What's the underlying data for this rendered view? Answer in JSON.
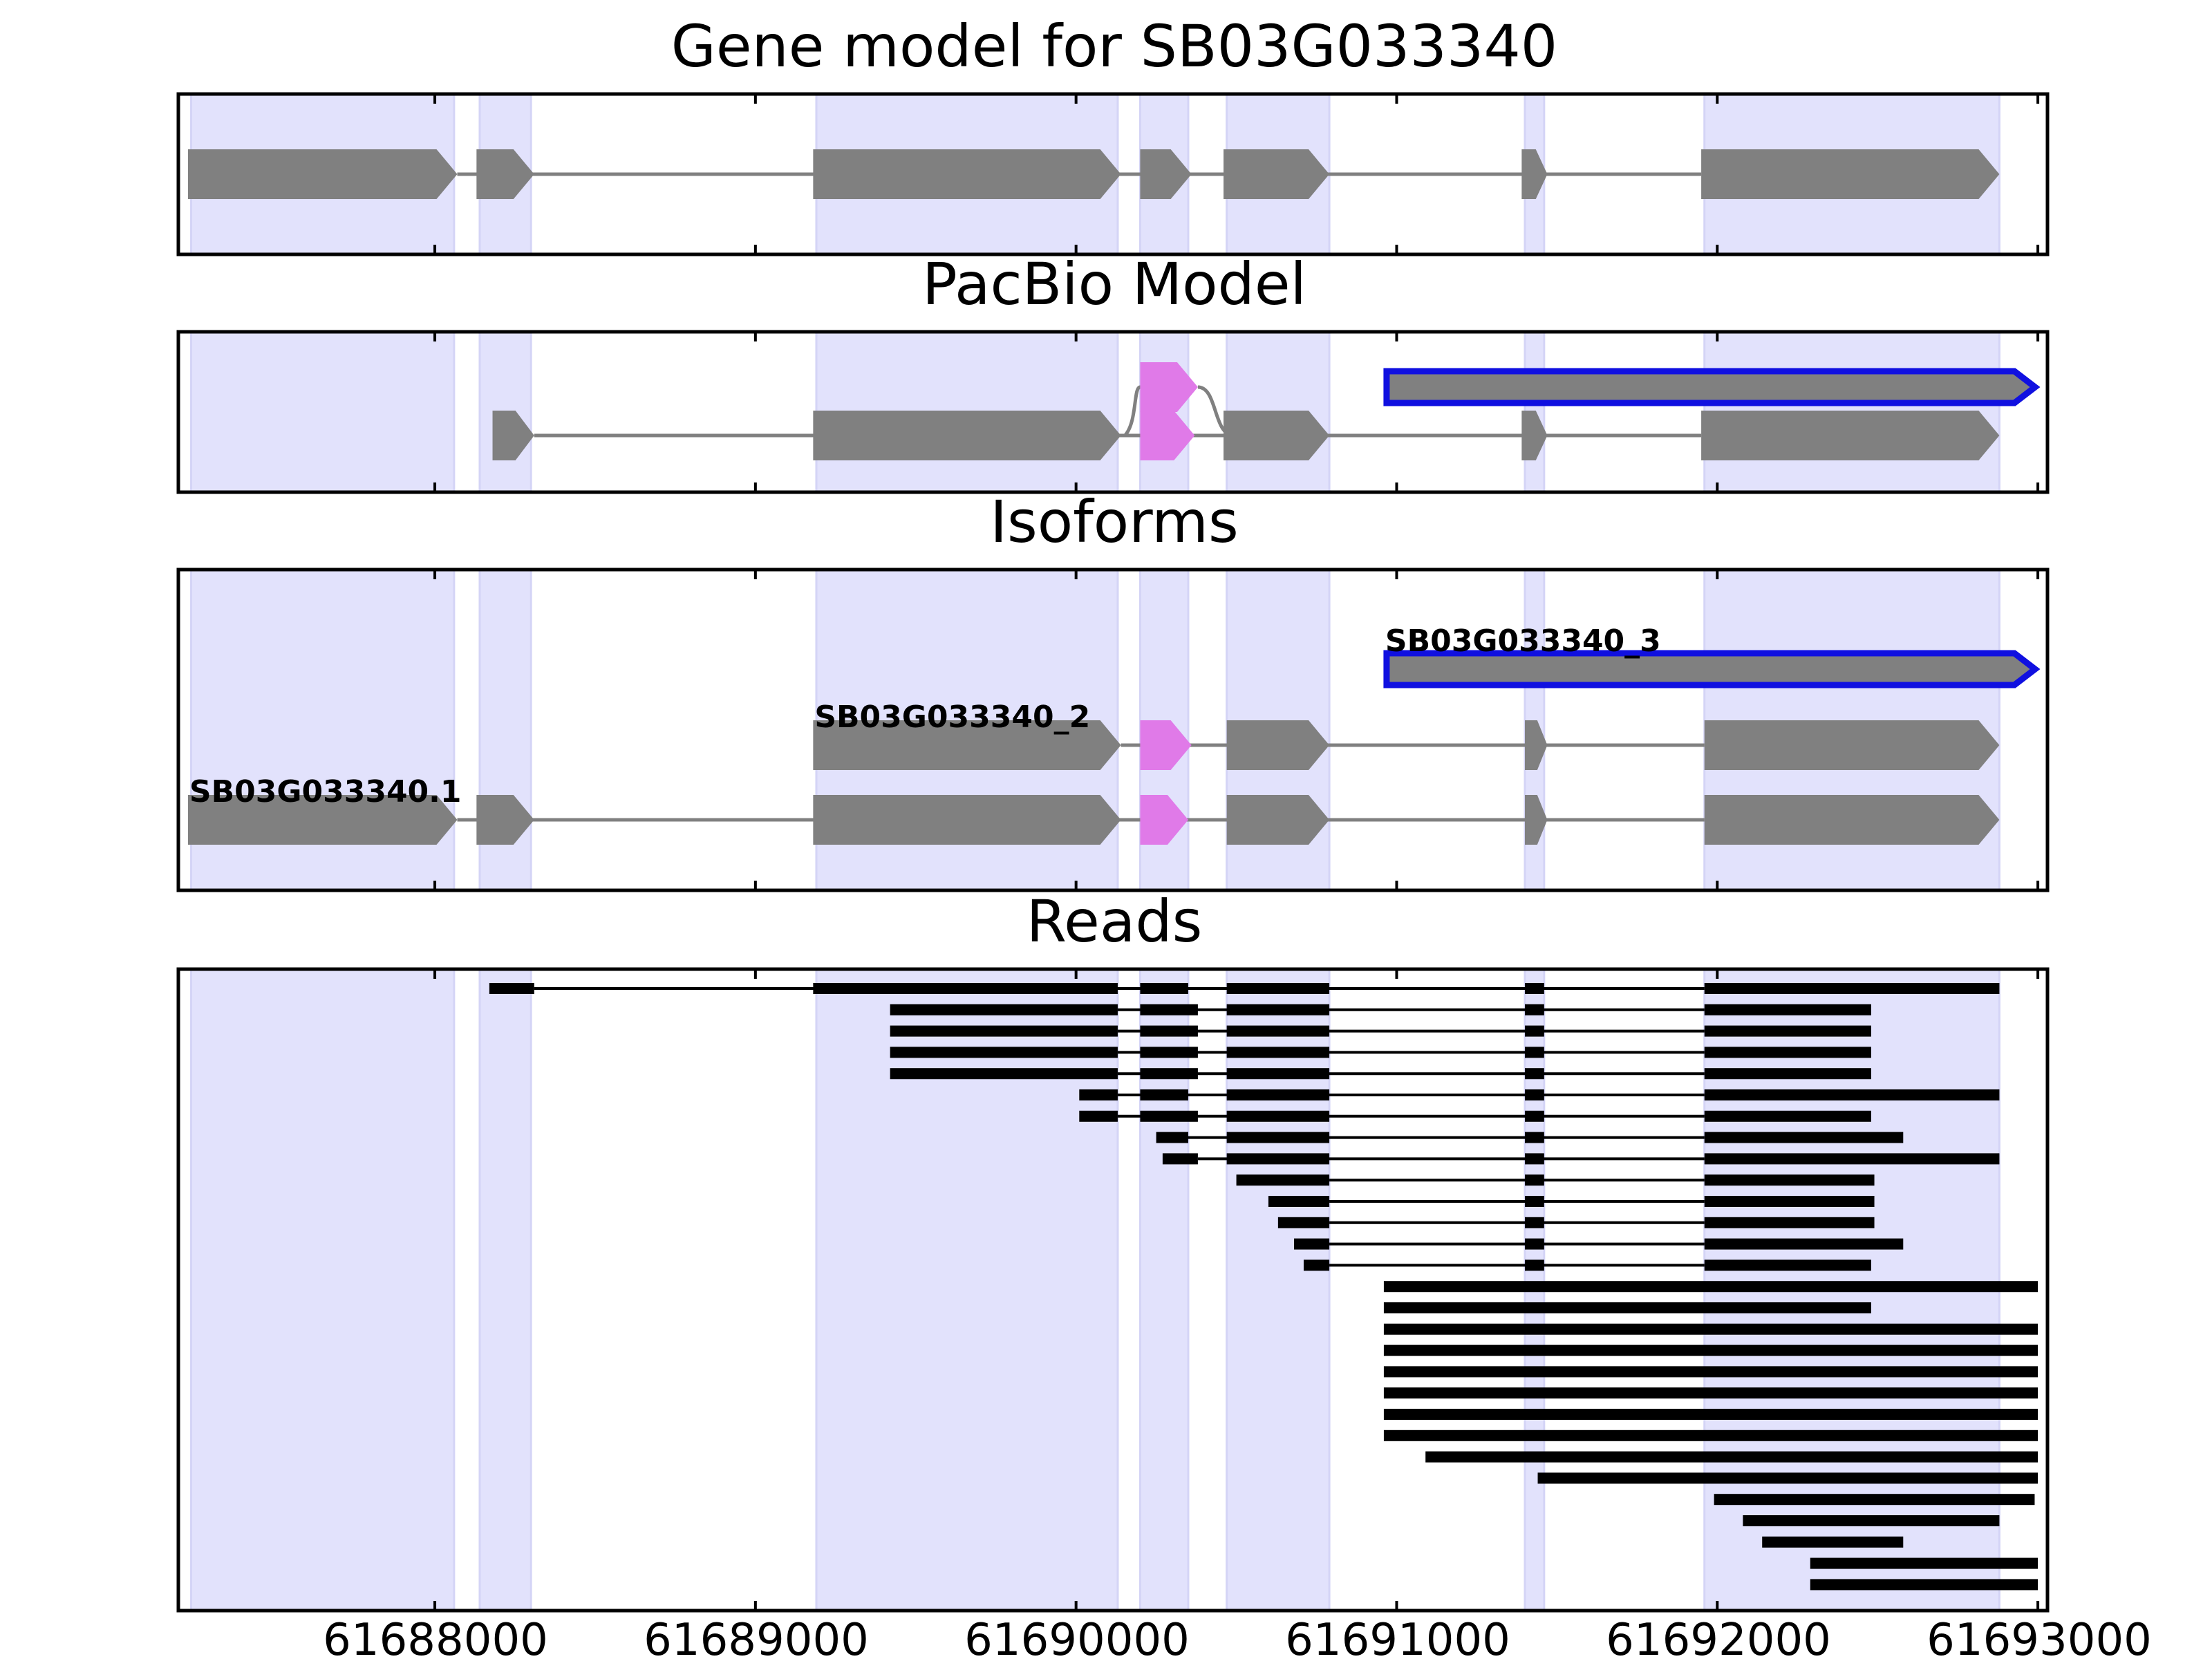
{
  "chart_data": {
    "type": "gene-structure-track",
    "xlim": [
      61687200,
      61693030
    ],
    "xticks": [
      61688000,
      61689000,
      61690000,
      61691000,
      61692000,
      61693000
    ],
    "tick_labels": [
      "61688000",
      "61689000",
      "61690000",
      "61691000",
      "61692000",
      "61693000"
    ],
    "colors": {
      "exon": "#808080",
      "intron": "#808080",
      "alt_exon": "#e07ae8",
      "unspliced_outline": "#1010e0",
      "shade": "#e2e2fc",
      "read": "#000000"
    },
    "shaded_regions": [
      [
        61687240,
        61688060
      ],
      [
        61688140,
        61688300
      ],
      [
        61689190,
        61690130
      ],
      [
        61690200,
        61690350
      ],
      [
        61690470,
        61690790
      ],
      [
        61691400,
        61691460
      ],
      [
        61691960,
        61692880
      ]
    ],
    "panels": [
      {
        "title": "Gene model for SB03G033340",
        "rows": 1,
        "features": [
          {
            "row": 0,
            "exons": [
              [
                61687230,
                61688070
              ],
              [
                61688130,
                61688310
              ],
              [
                61689180,
                61690140
              ],
              [
                61690200,
                61690360
              ],
              [
                61690460,
                61690790
              ],
              [
                61691390,
                61691470
              ],
              [
                61691950,
                61692880
              ]
            ]
          }
        ]
      },
      {
        "title": "PacBio Model",
        "rows": 2,
        "features": [
          {
            "row": 0,
            "exons": [
              [
                61688180,
                61688310
              ],
              [
                61689180,
                61690140
              ],
              [
                61690200,
                61690370
              ],
              [
                61690460,
                61690790
              ],
              [
                61691390,
                61691470
              ],
              [
                61691950,
                61692880
              ]
            ],
            "alt": [
              2
            ]
          },
          {
            "row": 1,
            "exons": [
              [
                61690200,
                61690380
              ]
            ],
            "alt": [
              0
            ],
            "branch": true
          },
          {
            "row": 1,
            "exons": [
              [
                61690960,
                61693000
              ]
            ],
            "unspliced": true
          }
        ]
      },
      {
        "title": "Isoforms",
        "rows": 3,
        "features": [
          {
            "row": 0,
            "label": "SB03G033340.1",
            "exons": [
              [
                61687230,
                61688070
              ],
              [
                61688130,
                61688310
              ],
              [
                61689180,
                61690140
              ],
              [
                61690200,
                61690350
              ],
              [
                61690470,
                61690790
              ],
              [
                61691400,
                61691470
              ],
              [
                61691960,
                61692880
              ]
            ],
            "alt": [
              3
            ]
          },
          {
            "row": 1,
            "label": "SB03G033340_2",
            "exons": [
              [
                61689180,
                61690140
              ],
              [
                61690200,
                61690360
              ],
              [
                61690470,
                61690790
              ],
              [
                61691400,
                61691470
              ],
              [
                61691960,
                61692880
              ]
            ],
            "alt": [
              1
            ]
          },
          {
            "row": 2,
            "label": "SB03G033340_3",
            "exons": [
              [
                61690960,
                61693000
              ]
            ],
            "unspliced": true
          }
        ]
      },
      {
        "title": "Reads",
        "reads": [
          [
            [
              61688170,
              61688310
            ],
            [
              61689180,
              61690130
            ],
            [
              61690200,
              61690350
            ],
            [
              61690470,
              61690790
            ],
            [
              61691400,
              61691460
            ],
            [
              61691960,
              61692880
            ]
          ],
          [
            [
              61689420,
              61690130
            ],
            [
              61690200,
              61690380
            ],
            [
              61690470,
              61690790
            ],
            [
              61691400,
              61691460
            ],
            [
              61691960,
              61692480
            ]
          ],
          [
            [
              61689420,
              61690130
            ],
            [
              61690200,
              61690380
            ],
            [
              61690470,
              61690790
            ],
            [
              61691400,
              61691460
            ],
            [
              61691960,
              61692480
            ]
          ],
          [
            [
              61689420,
              61690130
            ],
            [
              61690200,
              61690380
            ],
            [
              61690470,
              61690790
            ],
            [
              61691400,
              61691460
            ],
            [
              61691960,
              61692480
            ]
          ],
          [
            [
              61689420,
              61690130
            ],
            [
              61690200,
              61690380
            ],
            [
              61690470,
              61690790
            ],
            [
              61691400,
              61691460
            ],
            [
              61691960,
              61692480
            ]
          ],
          [
            [
              61690010,
              61690130
            ],
            [
              61690200,
              61690350
            ],
            [
              61690470,
              61690790
            ],
            [
              61691400,
              61691460
            ],
            [
              61691960,
              61692880
            ]
          ],
          [
            [
              61690010,
              61690130
            ],
            [
              61690200,
              61690380
            ],
            [
              61690470,
              61690790
            ],
            [
              61691400,
              61691460
            ],
            [
              61691960,
              61692480
            ]
          ],
          [
            [
              61690250,
              61690350
            ],
            [
              61690470,
              61690790
            ],
            [
              61691400,
              61691460
            ],
            [
              61691960,
              61692580
            ]
          ],
          [
            [
              61690270,
              61690380
            ],
            [
              61690470,
              61690790
            ],
            [
              61691400,
              61691460
            ],
            [
              61691960,
              61692880
            ]
          ],
          [
            [
              61690500,
              61690790
            ],
            [
              61691400,
              61691460
            ],
            [
              61691960,
              61692490
            ]
          ],
          [
            [
              61690600,
              61690790
            ],
            [
              61691400,
              61691460
            ],
            [
              61691960,
              61692490
            ]
          ],
          [
            [
              61690630,
              61690790
            ],
            [
              61691400,
              61691460
            ],
            [
              61691960,
              61692490
            ]
          ],
          [
            [
              61690680,
              61690790
            ],
            [
              61691400,
              61691460
            ],
            [
              61691960,
              61692580
            ]
          ],
          [
            [
              61690710,
              61690790
            ],
            [
              61691400,
              61691460
            ],
            [
              61691960,
              61692480
            ]
          ],
          [
            [
              61690960,
              61693000
            ]
          ],
          [
            [
              61690960,
              61692480
            ]
          ],
          [
            [
              61690960,
              61693000
            ]
          ],
          [
            [
              61690960,
              61693000
            ]
          ],
          [
            [
              61690960,
              61693000
            ]
          ],
          [
            [
              61690960,
              61693000
            ]
          ],
          [
            [
              61690960,
              61693000
            ]
          ],
          [
            [
              61690960,
              61693000
            ]
          ],
          [
            [
              61691090,
              61693000
            ]
          ],
          [
            [
              61691440,
              61693000
            ]
          ],
          [
            [
              61691990,
              61692990
            ]
          ],
          [
            [
              61692080,
              61692880
            ]
          ],
          [
            [
              61692140,
              61692580
            ]
          ],
          [
            [
              61692290,
              61693000
            ]
          ],
          [
            [
              61692290,
              61693000
            ]
          ]
        ]
      }
    ]
  }
}
